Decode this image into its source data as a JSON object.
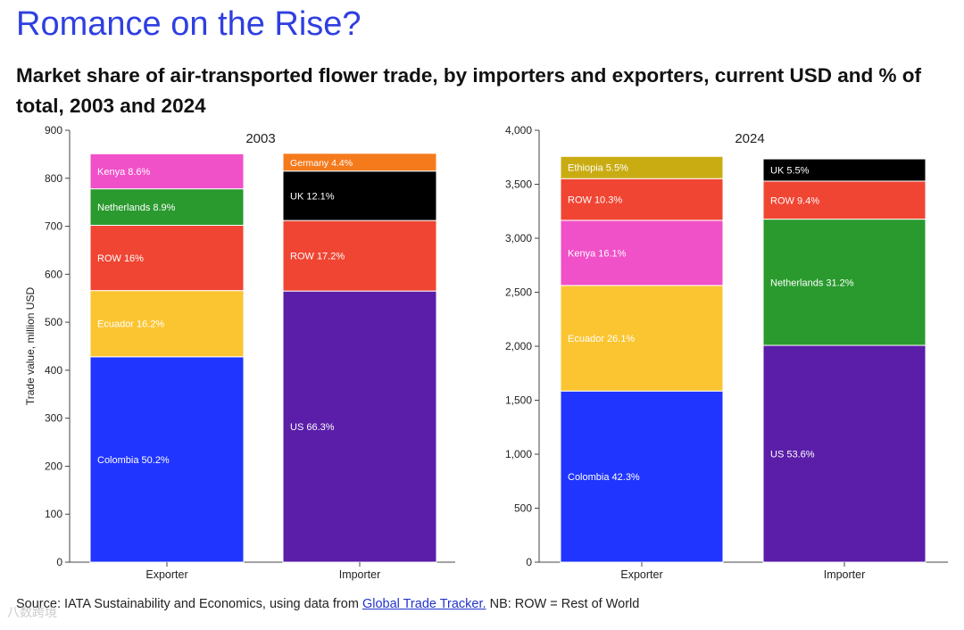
{
  "header": {
    "title": "Romance on the Rise?",
    "subtitle": "Market share of air-transported flower trade, by importers and exporters, current USD and % of total, 2003 and 2024"
  },
  "footer": {
    "source_prefix": "Source: IATA Sustainability and Economics, using data from",
    "link_text": "Global Trade Tracker.",
    "note": "NB: ROW = Rest of World"
  },
  "watermark": "八数跨境",
  "chart_data": [
    {
      "type": "bar",
      "stacked": true,
      "title": "2003",
      "ylabel": "Trade value, million USD",
      "ylim": [
        0,
        900
      ],
      "yticks": [
        0,
        100,
        200,
        300,
        400,
        500,
        600,
        700,
        800,
        900
      ],
      "ytick_labels": [
        "0",
        "100",
        "200",
        "300",
        "400",
        "500",
        "600",
        "700",
        "800",
        "900"
      ],
      "categories": [
        "Exporter",
        "Importer"
      ],
      "bars": [
        {
          "category": "Exporter",
          "segments": [
            {
              "label": "Colombia 50.2%",
              "value": 428,
              "color": "#2035ff"
            },
            {
              "label": "Ecuador 16.2%",
              "value": 138,
              "color": "#fbc531"
            },
            {
              "label": "ROW 16%",
              "value": 136,
              "color": "#f04533"
            },
            {
              "label": "Netherlands 8.9%",
              "value": 76,
              "color": "#2a9a2e"
            },
            {
              "label": "Kenya 8.6%",
              "value": 73,
              "color": "#f050c8"
            }
          ]
        },
        {
          "category": "Importer",
          "segments": [
            {
              "label": "US 66.3%",
              "value": 565,
              "color": "#5a1ea8"
            },
            {
              "label": "ROW 17.2%",
              "value": 147,
              "color": "#f04533"
            },
            {
              "label": "UK 12.1%",
              "value": 103,
              "color": "#000000"
            },
            {
              "label": "Germany 4.4%",
              "value": 37,
              "color": "#f57a1c"
            }
          ]
        }
      ]
    },
    {
      "type": "bar",
      "stacked": true,
      "title": "2024",
      "ylabel": "",
      "ylim": [
        0,
        4000
      ],
      "yticks": [
        0,
        500,
        1000,
        1500,
        2000,
        2500,
        3000,
        3500,
        4000
      ],
      "ytick_labels": [
        "0",
        "500",
        "1,000",
        "1,500",
        "2,000",
        "2,500",
        "3,000",
        "3,500",
        "4,000"
      ],
      "categories": [
        "Exporter",
        "Importer"
      ],
      "bars": [
        {
          "category": "Exporter",
          "segments": [
            {
              "label": "Colombia 42.3%",
              "value": 1585,
              "color": "#2035ff"
            },
            {
              "label": "Ecuador 26.1%",
              "value": 978,
              "color": "#fbc531"
            },
            {
              "label": "Kenya 16.1%",
              "value": 603,
              "color": "#f050c8"
            },
            {
              "label": "ROW 10.3%",
              "value": 386,
              "color": "#f04533"
            },
            {
              "label": "Ethiopia 5.5%",
              "value": 206,
              "color": "#c9ac12"
            }
          ]
        },
        {
          "category": "Importer",
          "segments": [
            {
              "label": "US 53.6%",
              "value": 2008,
              "color": "#5a1ea8"
            },
            {
              "label": "Netherlands 31.2%",
              "value": 1169,
              "color": "#2a9a2e"
            },
            {
              "label": "ROW 9.4%",
              "value": 352,
              "color": "#f04533"
            },
            {
              "label": "UK 5.5%",
              "value": 206,
              "color": "#000000"
            }
          ]
        }
      ]
    }
  ]
}
